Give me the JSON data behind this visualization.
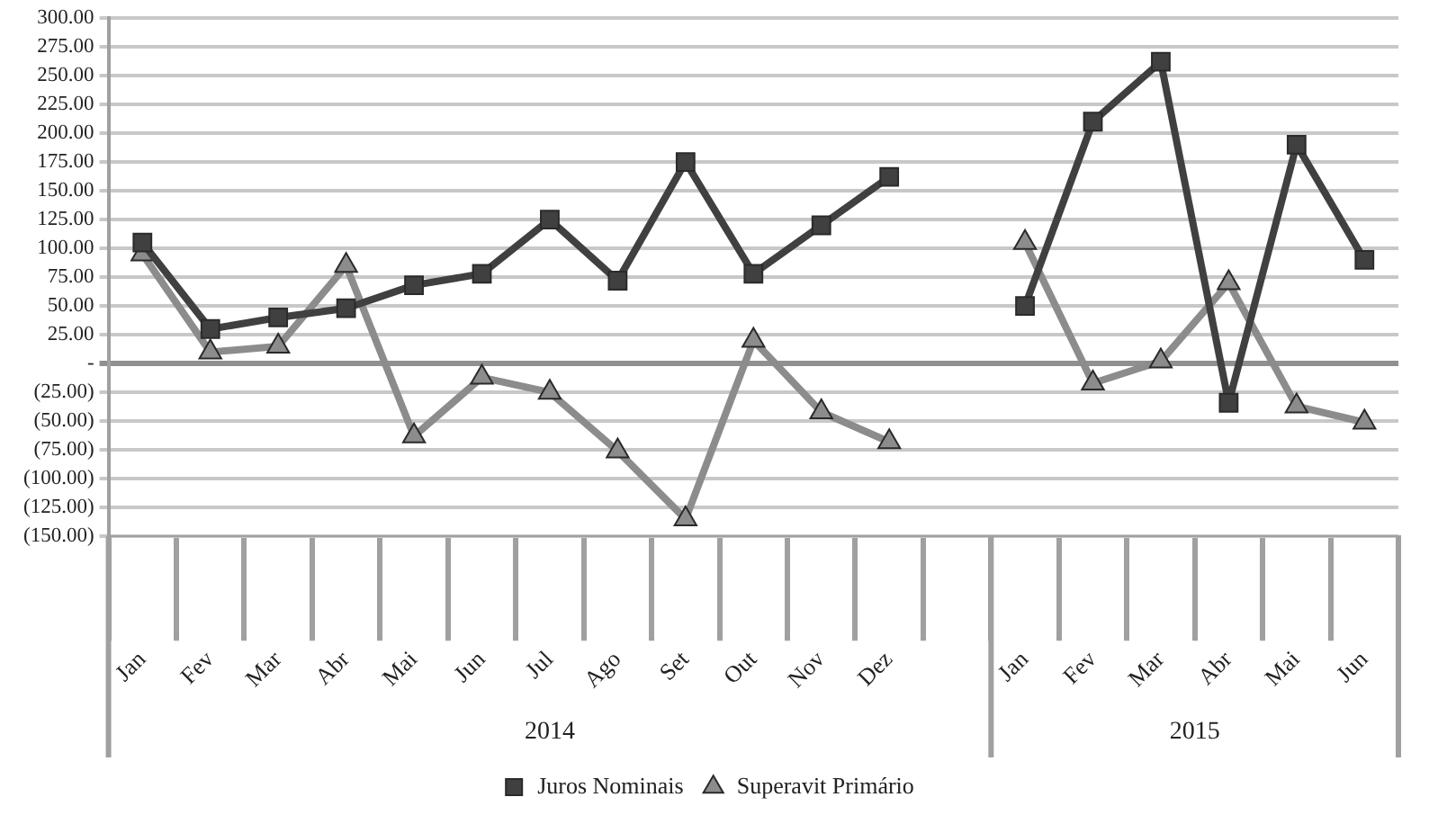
{
  "chart_data": {
    "type": "line",
    "categories": [
      "Jan",
      "Fev",
      "Mar",
      "Abr",
      "Mai",
      "Jun",
      "Jul",
      "Ago",
      "Set",
      "Out",
      "Nov",
      "Dez",
      null,
      "Jan",
      "Fev",
      "Mar",
      "Abr",
      "Mai",
      "Jun"
    ],
    "series": [
      {
        "name": "Juros Nominais",
        "color": "#404040",
        "marker": "square",
        "values": [
          105,
          30,
          40,
          48,
          68,
          78,
          125,
          72,
          175,
          78,
          120,
          162,
          null,
          50,
          210,
          262,
          -34,
          190,
          90
        ]
      },
      {
        "name": "Superavit Primário",
        "color": "#8c8c8c",
        "marker": "triangle",
        "values": [
          95,
          10,
          15,
          85,
          -63,
          -12,
          -25,
          -76,
          -135,
          20,
          -42,
          -68,
          null,
          105,
          -17,
          2,
          70,
          -37,
          -51
        ]
      }
    ],
    "ylim": [
      -150,
      300
    ],
    "yticks": [
      {
        "value": 300,
        "label": "300.00"
      },
      {
        "value": 275,
        "label": "275.00"
      },
      {
        "value": 250,
        "label": "250.00"
      },
      {
        "value": 225,
        "label": "225.00"
      },
      {
        "value": 200,
        "label": "200.00"
      },
      {
        "value": 175,
        "label": "175.00"
      },
      {
        "value": 150,
        "label": "150.00"
      },
      {
        "value": 125,
        "label": "125.00"
      },
      {
        "value": 100,
        "label": "100.00"
      },
      {
        "value": 75,
        "label": "75.00"
      },
      {
        "value": 50,
        "label": "50.00"
      },
      {
        "value": 25,
        "label": "25.00"
      },
      {
        "value": 0,
        "label": "-"
      },
      {
        "value": -25,
        "label": "(25.00)"
      },
      {
        "value": -50,
        "label": "(50.00)"
      },
      {
        "value": -75,
        "label": "(75.00)"
      },
      {
        "value": -100,
        "label": "(100.00)"
      },
      {
        "value": -125,
        "label": "(125.00)"
      },
      {
        "value": -150,
        "label": "(150.00)"
      }
    ],
    "annotations": [
      "2014",
      "2015"
    ],
    "grid": "y",
    "legend": "bottom",
    "line_style": "solid"
  }
}
